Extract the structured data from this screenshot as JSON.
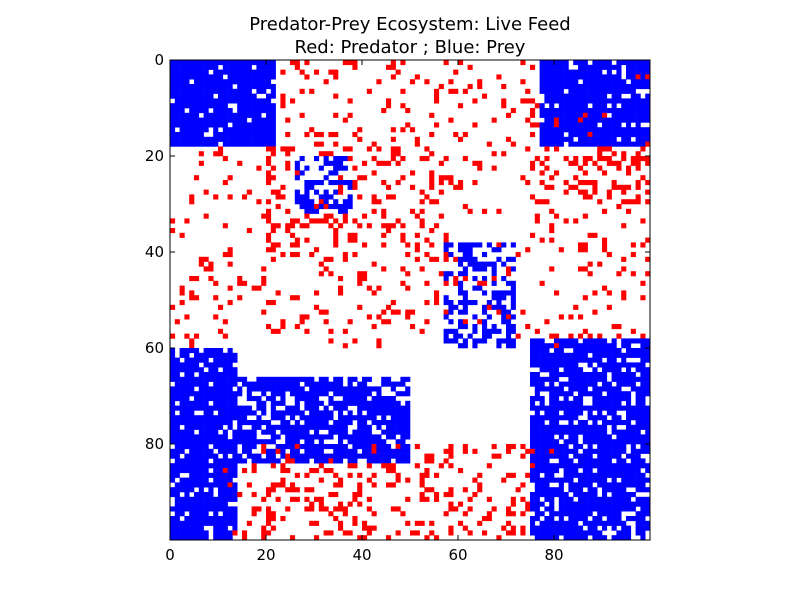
{
  "chart_data": {
    "type": "heatmap",
    "title": "Predator-Prey Ecosystem: Live Feed",
    "subtitle": "Red: Predator ; Blue: Prey",
    "grid_size": [
      100,
      100
    ],
    "xlim": [
      0,
      100
    ],
    "ylim": [
      100,
      0
    ],
    "y_inverted": true,
    "xticks": [
      0,
      20,
      40,
      60,
      80
    ],
    "yticks": [
      0,
      20,
      40,
      60,
      80
    ],
    "grid": false,
    "legend": "none",
    "cell_states": [
      "empty",
      "predator",
      "prey"
    ],
    "colors": {
      "empty": "#ffffff",
      "predator": "#ff0000",
      "prey": "#0000ff"
    },
    "prey_regions": [
      {
        "x": [
          0,
          22
        ],
        "y": [
          0,
          18
        ],
        "density": 0.92
      },
      {
        "x": [
          77,
          100
        ],
        "y": [
          0,
          18
        ],
        "density": 0.9
      },
      {
        "x": [
          0,
          14
        ],
        "y": [
          60,
          100
        ],
        "density": 0.88
      },
      {
        "x": [
          14,
          50
        ],
        "y": [
          66,
          84
        ],
        "density": 0.72
      },
      {
        "x": [
          75,
          100
        ],
        "y": [
          58,
          100
        ],
        "density": 0.82
      },
      {
        "x": [
          57,
          72
        ],
        "y": [
          38,
          60
        ],
        "density": 0.45
      },
      {
        "x": [
          26,
          38
        ],
        "y": [
          20,
          32
        ],
        "density": 0.45
      }
    ],
    "predator_regions": [
      {
        "x": [
          0,
          100
        ],
        "y": [
          0,
          60
        ],
        "density": 0.1
      },
      {
        "x": [
          20,
          55
        ],
        "y": [
          15,
          42
        ],
        "density": 0.22
      },
      {
        "x": [
          10,
          80
        ],
        "y": [
          80,
          100
        ],
        "density": 0.2
      },
      {
        "x": [
          75,
          100
        ],
        "y": [
          8,
          30
        ],
        "density": 0.28
      }
    ]
  }
}
